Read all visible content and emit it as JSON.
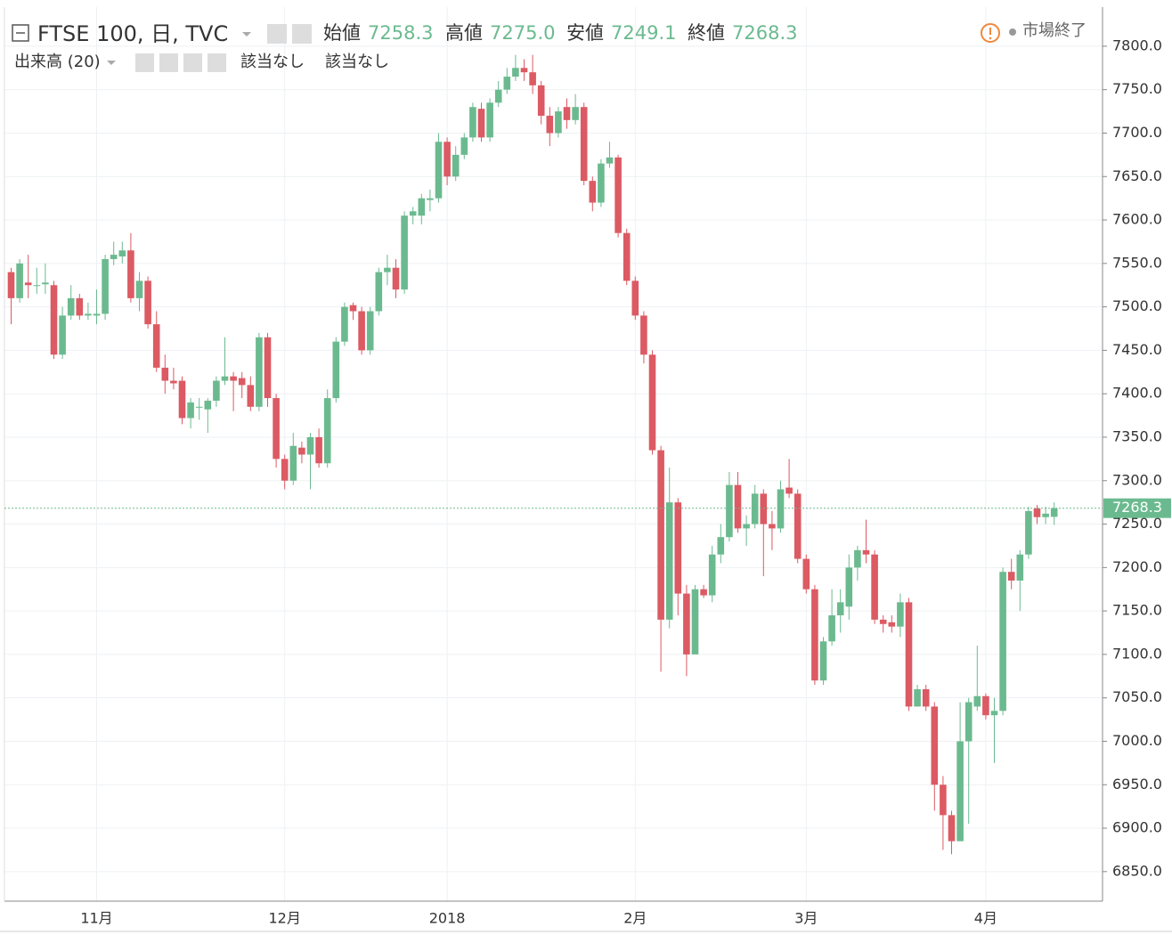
{
  "chart_data": {
    "type": "candlestick",
    "title": "FTSE 100, 日, TVC",
    "legend_values": [
      {
        "name": "始値",
        "value": "7258.3"
      },
      {
        "name": "高値",
        "value": "7275.0"
      },
      {
        "name": "安値",
        "value": "7249.1"
      },
      {
        "name": "終値",
        "value": "7268.3"
      }
    ],
    "volume_label": "出来高 (20)",
    "volume_values": [
      "該当なし",
      "該当なし"
    ],
    "status": "市場終了",
    "up_color": "#6bba8f",
    "down_color": "#dc5a63",
    "grid": true,
    "categories": [
      null,
      null,
      null,
      null,
      null,
      null,
      null,
      null,
      null,
      null,
      "11月",
      null,
      null,
      null,
      null,
      null,
      null,
      null,
      null,
      null,
      null,
      null,
      null,
      null,
      null,
      null,
      null,
      null,
      null,
      null,
      null,
      null,
      "12月",
      null,
      null,
      null,
      null,
      null,
      null,
      null,
      null,
      null,
      null,
      null,
      null,
      null,
      null,
      null,
      null,
      null,
      null,
      "2018",
      null,
      null,
      null,
      null,
      null,
      null,
      null,
      null,
      null,
      null,
      null,
      null,
      null,
      null,
      null,
      null,
      null,
      null,
      null,
      null,
      null,
      "2月",
      null,
      null,
      null,
      null,
      null,
      null,
      null,
      null,
      null,
      null,
      null,
      null,
      null,
      null,
      null,
      null,
      null,
      null,
      null,
      "3月",
      null,
      null,
      null,
      null,
      null,
      null,
      null,
      null,
      null,
      null,
      null,
      null,
      null,
      null,
      null,
      null,
      null,
      null,
      null,
      null,
      "4月",
      null,
      null,
      null,
      null,
      null,
      null,
      null,
      null
    ],
    "open": [
      7540,
      7510,
      7528,
      7525,
      7526,
      7525,
      7445,
      7490,
      7510,
      7490,
      7490,
      7492,
      7555,
      7558,
      7565,
      7510,
      7530,
      7480,
      7430,
      7415,
      7415,
      7372,
      7385,
      7382,
      7392,
      7415,
      7420,
      7418,
      7410,
      7385,
      7465,
      7395,
      7325,
      7300,
      7338,
      7330,
      7350,
      7320,
      7395,
      7460,
      7502,
      7495,
      7450,
      7495,
      7540,
      7545,
      7520,
      7605,
      7605,
      7623,
      7625,
      7690,
      7650,
      7675,
      7695,
      7728,
      7695,
      7735,
      7750,
      7765,
      7775,
      7770,
      7755,
      7720,
      7700,
      7730,
      7715,
      7730,
      7645,
      7620,
      7665,
      7672,
      7585,
      7530,
      7490,
      7445,
      7335,
      7140,
      7275,
      7170,
      7100,
      7175,
      7168,
      7215,
      7235,
      7295,
      7245,
      7250,
      7285,
      7250,
      7245,
      7292,
      7285,
      7210,
      7175,
      7070,
      7115,
      7145,
      7155,
      7200,
      7220,
      7215,
      7140,
      7137,
      7132,
      7160,
      7040,
      7060,
      7040,
      6950,
      6915,
      6885,
      7000,
      7040,
      7052,
      7030,
      7035,
      7195,
      7185,
      7215,
      7268,
      7258,
      7258.3
    ],
    "high": [
      7545,
      7555,
      7560,
      7545,
      7550,
      7530,
      7500,
      7525,
      7515,
      7505,
      7520,
      7560,
      7575,
      7575,
      7585,
      7540,
      7535,
      7495,
      7445,
      7430,
      7420,
      7395,
      7395,
      7395,
      7420,
      7465,
      7425,
      7425,
      7420,
      7470,
      7470,
      7400,
      7330,
      7355,
      7345,
      7355,
      7360,
      7405,
      7465,
      7505,
      7505,
      7500,
      7500,
      7545,
      7560,
      7555,
      7610,
      7615,
      7630,
      7635,
      7700,
      7695,
      7685,
      7700,
      7735,
      7735,
      7740,
      7760,
      7775,
      7790,
      7785,
      7790,
      7760,
      7730,
      7730,
      7740,
      7745,
      7735,
      7650,
      7670,
      7690,
      7675,
      7590,
      7535,
      7495,
      7450,
      7340,
      7315,
      7280,
      7180,
      7180,
      7180,
      7225,
      7250,
      7310,
      7310,
      7260,
      7295,
      7290,
      7265,
      7300,
      7325,
      7290,
      7215,
      7180,
      7120,
      7175,
      7175,
      7215,
      7225,
      7255,
      7220,
      7145,
      7145,
      7170,
      7165,
      7065,
      7065,
      7045,
      6960,
      6920,
      7045,
      7050,
      7110,
      7055,
      7050,
      7200,
      7210,
      7220,
      7270,
      7272,
      7270,
      7275.0
    ],
    "low": [
      7480,
      7505,
      7510,
      7515,
      7515,
      7440,
      7440,
      7485,
      7485,
      7485,
      7480,
      7485,
      7548,
      7550,
      7505,
      7495,
      7475,
      7425,
      7400,
      7405,
      7365,
      7360,
      7370,
      7355,
      7385,
      7410,
      7380,
      7395,
      7380,
      7380,
      7385,
      7315,
      7290,
      7295,
      7320,
      7290,
      7315,
      7315,
      7390,
      7455,
      7485,
      7445,
      7445,
      7490,
      7525,
      7510,
      7515,
      7595,
      7595,
      7610,
      7620,
      7640,
      7645,
      7670,
      7690,
      7690,
      7690,
      7730,
      7745,
      7760,
      7760,
      7745,
      7710,
      7685,
      7695,
      7705,
      7710,
      7640,
      7610,
      7615,
      7660,
      7580,
      7525,
      7485,
      7435,
      7330,
      7080,
      7130,
      7145,
      7075,
      7100,
      7165,
      7160,
      7205,
      7230,
      7240,
      7225,
      7245,
      7190,
      7220,
      7240,
      7280,
      7205,
      7170,
      7065,
      7065,
      7110,
      7125,
      7140,
      7185,
      7205,
      7135,
      7125,
      7125,
      7120,
      7035,
      7040,
      7035,
      6920,
      6875,
      6870,
      6885,
      6905,
      7035,
      7025,
      6975,
      7030,
      7175,
      7150,
      7210,
      7250,
      7250,
      7249.1
    ],
    "close": [
      7510,
      7550,
      7525,
      7525,
      7528,
      7445,
      7490,
      7510,
      7490,
      7492,
      7492,
      7555,
      7560,
      7565,
      7510,
      7530,
      7480,
      7430,
      7415,
      7412,
      7372,
      7390,
      7385,
      7392,
      7415,
      7420,
      7415,
      7410,
      7385,
      7465,
      7395,
      7325,
      7300,
      7340,
      7330,
      7350,
      7320,
      7395,
      7460,
      7500,
      7495,
      7450,
      7495,
      7540,
      7545,
      7520,
      7605,
      7610,
      7625,
      7625,
      7690,
      7650,
      7675,
      7695,
      7730,
      7695,
      7735,
      7750,
      7765,
      7775,
      7770,
      7755,
      7720,
      7700,
      7725,
      7715,
      7730,
      7645,
      7620,
      7665,
      7672,
      7585,
      7530,
      7490,
      7445,
      7335,
      7140,
      7275,
      7170,
      7100,
      7175,
      7168,
      7215,
      7235,
      7295,
      7245,
      7250,
      7285,
      7250,
      7245,
      7290,
      7285,
      7210,
      7175,
      7070,
      7115,
      7145,
      7160,
      7200,
      7220,
      7215,
      7140,
      7135,
      7132,
      7160,
      7040,
      7060,
      7040,
      6950,
      6915,
      6885,
      7000,
      7045,
      7052,
      7030,
      7035,
      7195,
      7185,
      7215,
      7265,
      7258,
      7262,
      7268.3
    ],
    "ylim": [
      6816,
      7845
    ],
    "yticks": [
      {
        "value": 6850,
        "label": "6850.0"
      },
      {
        "value": 6900,
        "label": "6900.0"
      },
      {
        "value": 6950,
        "label": "6950.0"
      },
      {
        "value": 7000,
        "label": "7000.0"
      },
      {
        "value": 7050,
        "label": "7050.0"
      },
      {
        "value": 7100,
        "label": "7100.0"
      },
      {
        "value": 7150,
        "label": "7150.0"
      },
      {
        "value": 7200,
        "label": "7200.0"
      },
      {
        "value": 7250,
        "label": "7250.0"
      },
      {
        "value": 7300,
        "label": "7300.0"
      },
      {
        "value": 7350,
        "label": "7350.0"
      },
      {
        "value": 7400,
        "label": "7400.0"
      },
      {
        "value": 7450,
        "label": "7450.0"
      },
      {
        "value": 7500,
        "label": "7500.0"
      },
      {
        "value": 7550,
        "label": "7550.0"
      },
      {
        "value": 7600,
        "label": "7600.0"
      },
      {
        "value": 7650,
        "label": "7650.0"
      },
      {
        "value": 7700,
        "label": "7700.0"
      },
      {
        "value": 7750,
        "label": "7750.0"
      },
      {
        "value": 7800,
        "label": "7800.0"
      }
    ]
  }
}
